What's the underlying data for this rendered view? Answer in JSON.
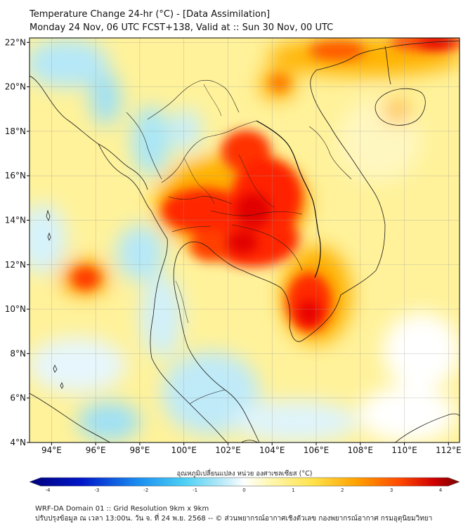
{
  "header": {
    "title_line1": "Temperature Change 24-hr (°C) - [Data Assimilation]",
    "title_line2": "Monday 24 Nov, 06 UTC FCST+138, Valid at :: Sun 30 Nov, 00 UTC"
  },
  "map": {
    "lon_range": [
      93,
      112.5
    ],
    "lat_range": [
      4,
      22.2
    ],
    "lon_ticks": [
      "94°E",
      "96°E",
      "98°E",
      "100°E",
      "102°E",
      "104°E",
      "106°E",
      "108°E",
      "110°E",
      "112°E"
    ],
    "lat_ticks": [
      "4°N",
      "6°N",
      "8°N",
      "10°N",
      "12°N",
      "14°N",
      "16°N",
      "18°N",
      "20°N",
      "22°N"
    ],
    "gridlines": true
  },
  "colorbar": {
    "label": "อุณหภูมิเปลี่ยนแปลง หน่วย องศาเซลเซียส (°C)",
    "tick_labels": [
      "-4",
      "-3",
      "-2",
      "-1",
      "0",
      "1",
      "2",
      "3",
      "4"
    ],
    "range": [
      -4,
      4
    ]
  },
  "footer": {
    "line1": "WRF-DA Domain 01 :: Grid Resolution 9km x 9km",
    "line2": "ปรับปรุงข้อมูล ณ เวลา 13:00น. วัน จ. ที่ 24 พ.ย. 2568 -- © ส่วนพยากรณ์อากาศเชิงตัวเลข กองพยากรณ์อากาศ กรมอุตุนิยมวิทยา"
  },
  "colors": {
    "warm_max": "#cc0000",
    "warm": "#ff3a00",
    "orange": "#ff9a00",
    "yellow": "#ffee66",
    "neutral": "#ffffff",
    "cool": "#a9e6f7",
    "cool_mid": "#3cc3f0",
    "cool_max": "#000088"
  }
}
